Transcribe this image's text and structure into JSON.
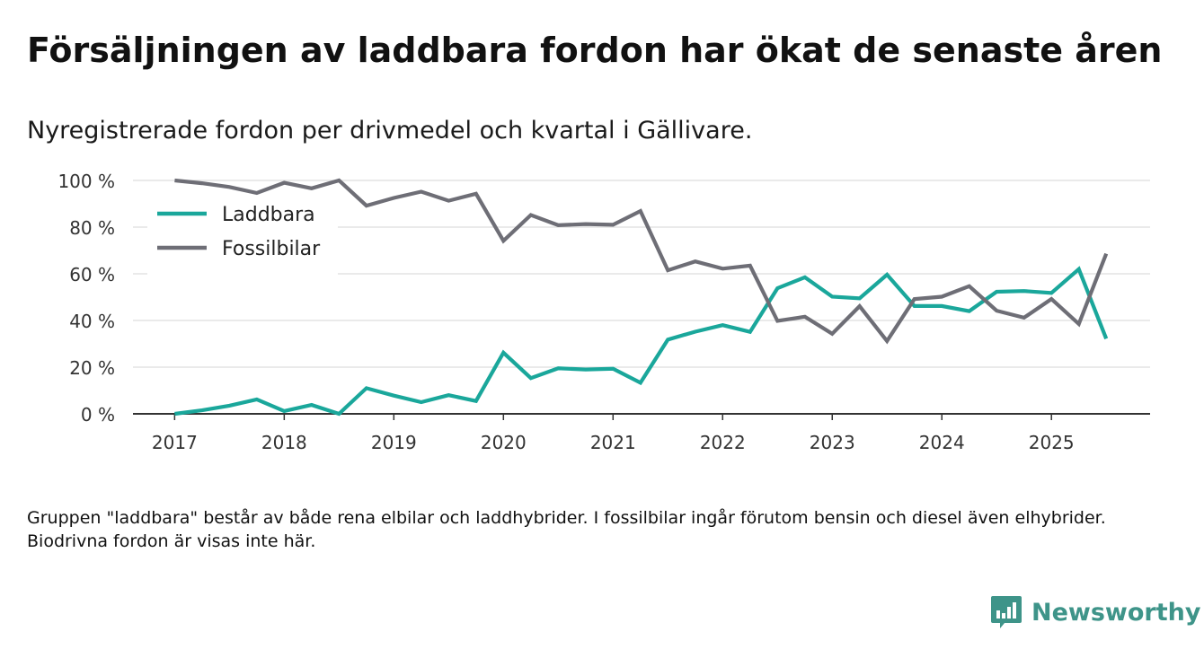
{
  "title": "Försäljningen av laddbara fordon har ökat de senaste åren",
  "subtitle": "Nyregistrerade fordon per drivmedel och kvartal i Gällivare.",
  "footnote": "Gruppen \"laddbara\" består av både rena elbilar och laddhybrider. I fossilbilar ingår förutom bensin och diesel även elhybrider. Biodrivna fordon är visas inte här.",
  "brand": {
    "name": "Newsworthy",
    "icon": "newsworthy-logo-icon"
  },
  "colors": {
    "laddbara": "#1aa79b",
    "fossil": "#6e6e76",
    "grid": "#dddddd",
    "axis": "#333333",
    "brand": "#3e9489"
  },
  "chart_data": {
    "type": "line",
    "title": "Försäljningen av laddbara fordon har ökat de senaste åren",
    "xlabel": "",
    "ylabel": "",
    "x": [
      "2017 Q1",
      "2017 Q2",
      "2017 Q3",
      "2017 Q4",
      "2018 Q1",
      "2018 Q2",
      "2018 Q3",
      "2018 Q4",
      "2019 Q1",
      "2019 Q2",
      "2019 Q3",
      "2019 Q4",
      "2020 Q1",
      "2020 Q2",
      "2020 Q3",
      "2020 Q4",
      "2021 Q1",
      "2021 Q2",
      "2021 Q3",
      "2021 Q4",
      "2022 Q1",
      "2022 Q2",
      "2022 Q3",
      "2022 Q4",
      "2023 Q1",
      "2023 Q2",
      "2023 Q3",
      "2023 Q4",
      "2024 Q1",
      "2024 Q2",
      "2024 Q3",
      "2024 Q4",
      "2025 Q1",
      "2025 Q2",
      "2025 Q3"
    ],
    "x_start": 2017,
    "x_step": 0.25,
    "xlim": [
      2016.62,
      2025.9
    ],
    "ylim": [
      0,
      100
    ],
    "y_ticks": [
      0,
      20,
      40,
      60,
      80,
      100
    ],
    "y_tick_labels": [
      "0 %",
      "20 %",
      "40 %",
      "60 %",
      "80 %",
      "100 %"
    ],
    "x_ticks": [
      2017,
      2018,
      2019,
      2020,
      2021,
      2022,
      2023,
      2024,
      2025
    ],
    "x_tick_labels": [
      "2017",
      "2018",
      "2019",
      "2020",
      "2021",
      "2022",
      "2023",
      "2024",
      "2025"
    ],
    "legend_position": "top-left",
    "grid": true,
    "series": [
      {
        "name": "Laddbara",
        "color": "#1aa79b",
        "values": [
          0,
          1.5,
          3.5,
          6.2,
          1.2,
          3.8,
          0,
          11,
          7.8,
          5,
          8,
          5.5,
          26.2,
          15.3,
          19.5,
          19,
          19.3,
          13.3,
          31.8,
          35.2,
          38,
          35.1,
          53.8,
          58.5,
          50.2,
          49.5,
          59.6,
          46.2,
          46.2,
          44,
          52.3,
          52.6,
          51.8,
          62,
          32.2
        ]
      },
      {
        "name": "Fossilbilar",
        "color": "#6e6e76",
        "values": [
          100,
          98.8,
          97.2,
          94.6,
          99,
          96.6,
          100,
          89.2,
          92.5,
          95.2,
          91.3,
          94.3,
          74.1,
          85.2,
          80.8,
          81.3,
          81,
          86.9,
          61.5,
          65.3,
          62.2,
          63.5,
          39.8,
          41.6,
          34.3,
          46.1,
          31.2,
          49.2,
          50.2,
          54.7,
          44.2,
          41.2,
          49.2,
          38.5,
          68.6
        ]
      }
    ]
  }
}
